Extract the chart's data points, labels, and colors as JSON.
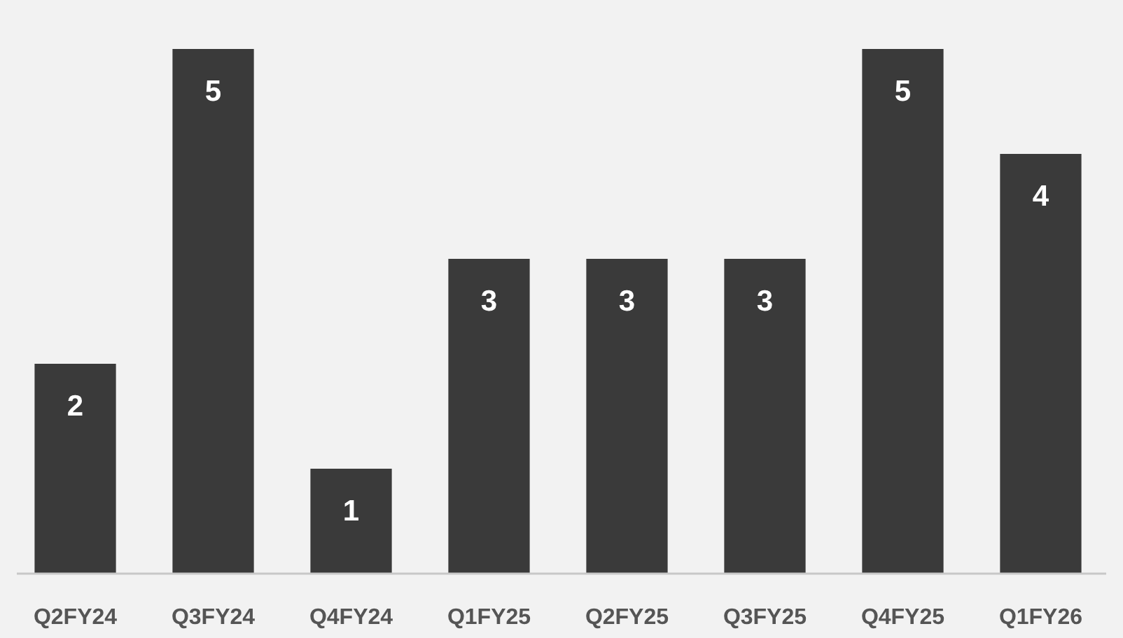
{
  "chart_data": {
    "type": "bar",
    "categories": [
      "Q2FY24",
      "Q3FY24",
      "Q4FY24",
      "Q1FY25",
      "Q2FY25",
      "Q3FY25",
      "Q4FY25",
      "Q1FY26"
    ],
    "values": [
      2,
      5,
      1,
      3,
      3,
      3,
      5,
      4
    ],
    "color": "#3a3a3a",
    "data_labels": true,
    "grid": false
  }
}
